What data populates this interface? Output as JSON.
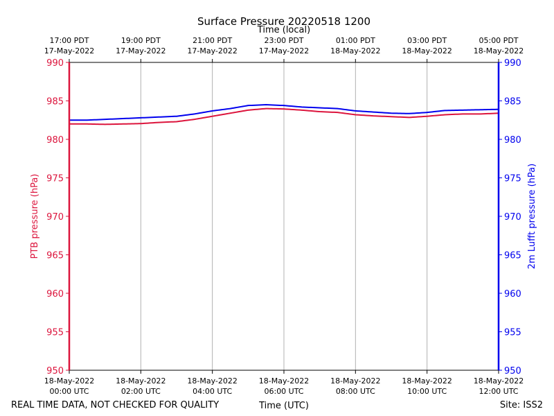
{
  "chart_data": {
    "type": "line",
    "title": "Surface Pressure 20220518 1200",
    "top_axis_label": "Time (local)",
    "xlabel": "Time (UTC)",
    "ylabel_left": "PTB pressure (hPa)",
    "ylabel_right": "2m Lufft pressure (hPa)",
    "footer_left": "REAL TIME DATA, NOT CHECKED FOR QUALITY",
    "footer_right": "Site: ISS2",
    "xlim_hours": [
      0,
      12
    ],
    "ylim": [
      950,
      990
    ],
    "yticks": [
      950,
      955,
      960,
      965,
      970,
      975,
      980,
      985,
      990
    ],
    "grid": "vertical",
    "bottom_ticks": [
      {
        "hour": 0,
        "line1": "18-May-2022",
        "line2": "00:00 UTC"
      },
      {
        "hour": 2,
        "line1": "18-May-2022",
        "line2": "02:00 UTC"
      },
      {
        "hour": 4,
        "line1": "18-May-2022",
        "line2": "04:00 UTC"
      },
      {
        "hour": 6,
        "line1": "18-May-2022",
        "line2": "06:00 UTC"
      },
      {
        "hour": 8,
        "line1": "18-May-2022",
        "line2": "08:00 UTC"
      },
      {
        "hour": 10,
        "line1": "18-May-2022",
        "line2": "10:00 UTC"
      },
      {
        "hour": 12,
        "line1": "18-May-2022",
        "line2": "12:00 UTC"
      }
    ],
    "top_ticks": [
      {
        "hour": 0,
        "line1": "17:00 PDT",
        "line2": "17-May-2022"
      },
      {
        "hour": 2,
        "line1": "19:00 PDT",
        "line2": "17-May-2022"
      },
      {
        "hour": 4,
        "line1": "21:00 PDT",
        "line2": "17-May-2022"
      },
      {
        "hour": 6,
        "line1": "23:00 PDT",
        "line2": "17-May-2022"
      },
      {
        "hour": 8,
        "line1": "01:00 PDT",
        "line2": "18-May-2022"
      },
      {
        "hour": 10,
        "line1": "03:00 PDT",
        "line2": "18-May-2022"
      },
      {
        "hour": 12,
        "line1": "05:00 PDT",
        "line2": "18-May-2022"
      }
    ],
    "series": [
      {
        "axis": "left",
        "color": "#dc143c",
        "x": [
          0,
          0.5,
          1,
          1.5,
          2,
          2.5,
          3,
          3.5,
          4,
          4.5,
          5,
          5.5,
          6,
          6.5,
          7,
          7.5,
          8,
          8.5,
          9,
          9.5,
          10,
          10.5,
          11,
          11.5,
          12
        ],
        "values": [
          982.0,
          982.0,
          981.95,
          982.0,
          982.05,
          982.2,
          982.3,
          982.6,
          983.0,
          983.4,
          983.8,
          984.0,
          983.95,
          983.8,
          983.6,
          983.5,
          983.2,
          983.05,
          982.95,
          982.85,
          983.0,
          983.2,
          983.3,
          983.3,
          983.4
        ]
      },
      {
        "axis": "right",
        "color": "#0000ee",
        "x": [
          0,
          0.5,
          1,
          1.5,
          2,
          2.5,
          3,
          3.5,
          4,
          4.5,
          5,
          5.5,
          6,
          6.5,
          7,
          7.5,
          8,
          8.5,
          9,
          9.5,
          10,
          10.5,
          11,
          11.5,
          12
        ],
        "values": [
          982.5,
          982.5,
          982.6,
          982.7,
          982.8,
          982.9,
          983.0,
          983.3,
          983.7,
          984.0,
          984.4,
          984.5,
          984.4,
          984.2,
          984.1,
          984.0,
          983.7,
          983.55,
          983.4,
          983.35,
          983.5,
          983.75,
          983.8,
          983.85,
          983.9
        ]
      }
    ]
  }
}
